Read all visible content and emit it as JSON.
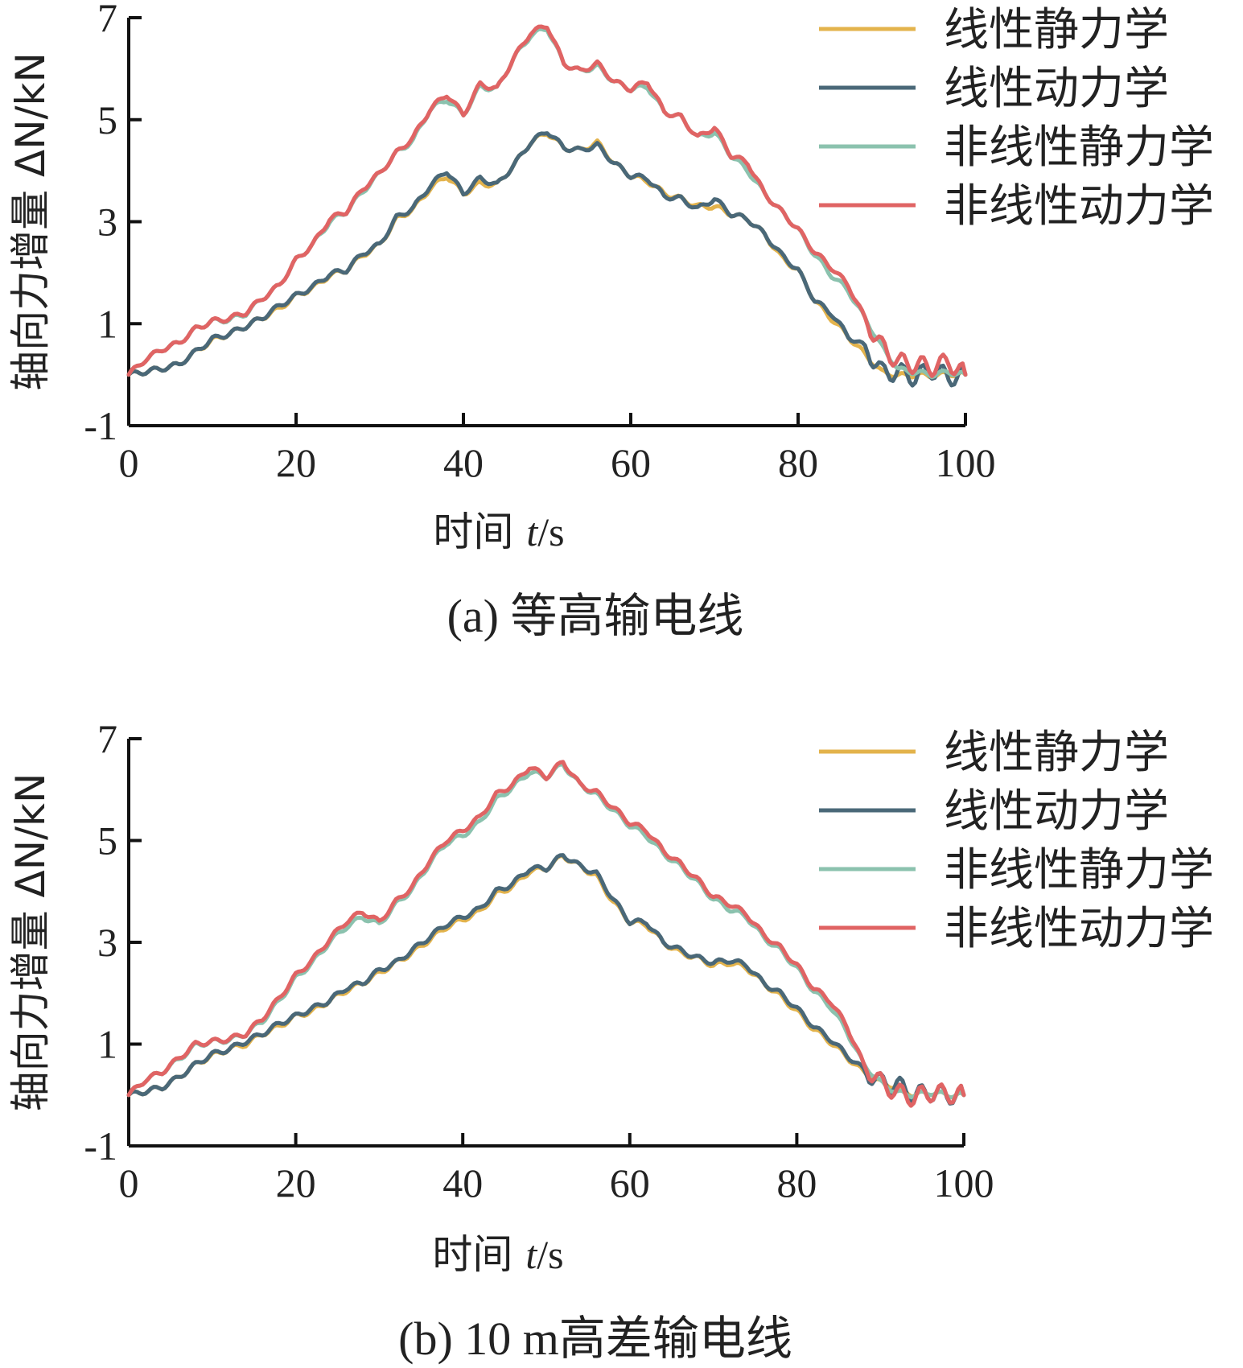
{
  "chart_data": [
    {
      "type": "line",
      "caption": "(a) 等高输电线",
      "xlabel_prefix": "时间 ",
      "xlabel_var": "t",
      "xlabel_unit": "/s",
      "ylabel": "轴向力增量 ΔN/kN",
      "xlim": [
        0,
        100
      ],
      "ylim": [
        -1,
        7
      ],
      "xticks": [
        0,
        20,
        40,
        60,
        80,
        100
      ],
      "yticks": [
        -1,
        1,
        3,
        5,
        7
      ],
      "legend_position": "top-right",
      "x": [
        0,
        2,
        4,
        6,
        8,
        10,
        12,
        14,
        16,
        18,
        20,
        22,
        24,
        26,
        28,
        30,
        32,
        34,
        36,
        38,
        40,
        42,
        44,
        46,
        48,
        50,
        52,
        54,
        56,
        58,
        60,
        62,
        64,
        66,
        68,
        70,
        72,
        74,
        76,
        78,
        80,
        82,
        84,
        86,
        88,
        90,
        92,
        94,
        96,
        98,
        100
      ],
      "series": [
        {
          "name": "线性静力学",
          "color": "#E3B34C",
          "values": [
            0,
            0.06,
            0.12,
            0.2,
            0.45,
            0.68,
            0.8,
            0.95,
            1.12,
            1.3,
            1.55,
            1.7,
            1.95,
            2.05,
            2.35,
            2.55,
            3.05,
            3.25,
            3.65,
            3.9,
            3.55,
            3.75,
            3.72,
            4.1,
            4.55,
            4.75,
            4.45,
            4.4,
            4.55,
            4.15,
            3.9,
            3.8,
            3.55,
            3.45,
            3.3,
            3.3,
            3.15,
            3.05,
            2.75,
            2.3,
            2.05,
            1.45,
            1.1,
            0.75,
            0.4,
            0.05,
            -0.02,
            0,
            -0.02,
            0.02,
            0
          ]
        },
        {
          "name": "线性动力学",
          "color": "#4A6878",
          "values": [
            0,
            0.06,
            0.12,
            0.2,
            0.45,
            0.7,
            0.8,
            0.95,
            1.12,
            1.35,
            1.55,
            1.72,
            1.97,
            2.05,
            2.38,
            2.55,
            3.08,
            3.27,
            3.7,
            4.0,
            3.55,
            3.85,
            3.72,
            4.1,
            4.55,
            4.78,
            4.45,
            4.4,
            4.5,
            4.15,
            3.9,
            3.85,
            3.5,
            3.45,
            3.25,
            3.45,
            3.15,
            3.05,
            2.75,
            2.35,
            2.05,
            1.45,
            1.2,
            0.75,
            0.55,
            0.05,
            0.05,
            -0.05,
            0.1,
            -0.05,
            0
          ]
        },
        {
          "name": "非线性静力学",
          "color": "#8BC2AE",
          "values": [
            0,
            0.3,
            0.5,
            0.62,
            0.9,
            1.05,
            1.08,
            1.2,
            1.5,
            1.75,
            2.25,
            2.55,
            3.0,
            3.2,
            3.6,
            3.95,
            4.35,
            4.6,
            5.2,
            5.4,
            5.1,
            5.65,
            5.6,
            6.2,
            6.65,
            6.8,
            6.1,
            5.95,
            6.05,
            5.75,
            5.6,
            5.65,
            5.15,
            5.05,
            4.65,
            4.75,
            4.3,
            4.0,
            3.55,
            3.2,
            2.85,
            2.35,
            1.95,
            1.65,
            1.1,
            0.55,
            0.1,
            0.05,
            0,
            0.05,
            0
          ]
        },
        {
          "name": "非线性动力学",
          "color": "#E06464",
          "values": [
            0,
            0.3,
            0.5,
            0.62,
            0.9,
            1.05,
            1.1,
            1.22,
            1.5,
            1.75,
            2.25,
            2.55,
            3.05,
            3.2,
            3.65,
            3.95,
            4.35,
            4.65,
            5.2,
            5.5,
            5.1,
            5.7,
            5.6,
            6.2,
            6.7,
            6.85,
            6.1,
            5.95,
            6.1,
            5.75,
            5.6,
            5.75,
            5.15,
            5.05,
            4.65,
            4.85,
            4.3,
            4.15,
            3.55,
            3.2,
            2.85,
            2.4,
            2.1,
            1.75,
            1.1,
            0.55,
            0.25,
            0.2,
            0.15,
            0.25,
            0
          ]
        }
      ]
    },
    {
      "type": "line",
      "caption": "(b) 10 m高差输电线",
      "xlabel_prefix": "时间 ",
      "xlabel_var": "t",
      "xlabel_unit": "/s",
      "ylabel": "轴向力增量 ΔN/kN",
      "xlim": [
        0,
        100
      ],
      "ylim": [
        -1,
        7
      ],
      "xticks": [
        0,
        20,
        40,
        60,
        80,
        100
      ],
      "yticks": [
        -1,
        1,
        3,
        5,
        7
      ],
      "legend_position": "top-right",
      "x": [
        0,
        2,
        4,
        6,
        8,
        10,
        12,
        14,
        16,
        18,
        20,
        22,
        24,
        26,
        28,
        30,
        32,
        34,
        36,
        38,
        40,
        42,
        44,
        46,
        48,
        50,
        52,
        54,
        56,
        58,
        60,
        62,
        64,
        66,
        68,
        70,
        72,
        74,
        76,
        78,
        80,
        82,
        84,
        86,
        88,
        90,
        92,
        94,
        96,
        98,
        100
      ],
      "series": [
        {
          "name": "线性静力学",
          "color": "#E3B34C",
          "values": [
            0,
            0.07,
            0.15,
            0.35,
            0.6,
            0.78,
            0.9,
            1.0,
            1.2,
            1.35,
            1.55,
            1.65,
            1.85,
            2.05,
            2.2,
            2.4,
            2.6,
            2.8,
            3.05,
            3.3,
            3.45,
            3.6,
            3.95,
            4.1,
            4.4,
            4.45,
            4.7,
            4.5,
            4.3,
            3.8,
            3.4,
            3.35,
            3.0,
            2.8,
            2.7,
            2.55,
            2.6,
            2.5,
            2.2,
            1.95,
            1.65,
            1.3,
            1.05,
            0.75,
            0.45,
            0.25,
            0.15,
            0,
            0.05,
            0,
            0
          ]
        },
        {
          "name": "线性动力学",
          "color": "#4A6878",
          "values": [
            0,
            0.07,
            0.15,
            0.35,
            0.6,
            0.8,
            0.9,
            1.05,
            1.2,
            1.4,
            1.55,
            1.7,
            1.85,
            2.1,
            2.2,
            2.45,
            2.6,
            2.85,
            3.1,
            3.35,
            3.5,
            3.65,
            4.0,
            4.15,
            4.45,
            4.45,
            4.72,
            4.5,
            4.35,
            3.85,
            3.4,
            3.4,
            3.0,
            2.85,
            2.7,
            2.6,
            2.65,
            2.55,
            2.2,
            2.0,
            1.7,
            1.35,
            1.1,
            0.78,
            0.5,
            0.25,
            0.2,
            0,
            0.05,
            0,
            0
          ]
        },
        {
          "name": "非线性静力学",
          "color": "#8BC2AE",
          "values": [
            0,
            0.3,
            0.45,
            0.7,
            0.98,
            1.05,
            1.08,
            1.2,
            1.45,
            1.85,
            2.3,
            2.6,
            3.0,
            3.3,
            3.5,
            3.35,
            3.75,
            4.05,
            4.55,
            4.95,
            5.1,
            5.35,
            5.8,
            6.05,
            6.35,
            6.25,
            6.5,
            6.1,
            5.9,
            5.6,
            5.3,
            5.1,
            4.75,
            4.5,
            4.2,
            3.85,
            3.65,
            3.5,
            3.1,
            2.85,
            2.5,
            2.05,
            1.75,
            1.25,
            0.6,
            0.25,
            0.05,
            0,
            0.05,
            0,
            0
          ]
        },
        {
          "name": "非线性动力学",
          "color": "#E06464",
          "values": [
            0,
            0.3,
            0.45,
            0.72,
            1.0,
            1.05,
            1.1,
            1.2,
            1.5,
            1.9,
            2.35,
            2.65,
            3.05,
            3.4,
            3.6,
            3.4,
            3.8,
            4.1,
            4.6,
            5.0,
            5.2,
            5.45,
            5.9,
            6.1,
            6.45,
            6.25,
            6.55,
            6.1,
            5.95,
            5.65,
            5.35,
            5.2,
            4.8,
            4.55,
            4.25,
            3.9,
            3.75,
            3.55,
            3.15,
            2.9,
            2.55,
            2.1,
            1.85,
            1.35,
            0.6,
            0.25,
            0.05,
            -0.05,
            0.05,
            0.02,
            0
          ]
        }
      ]
    }
  ]
}
